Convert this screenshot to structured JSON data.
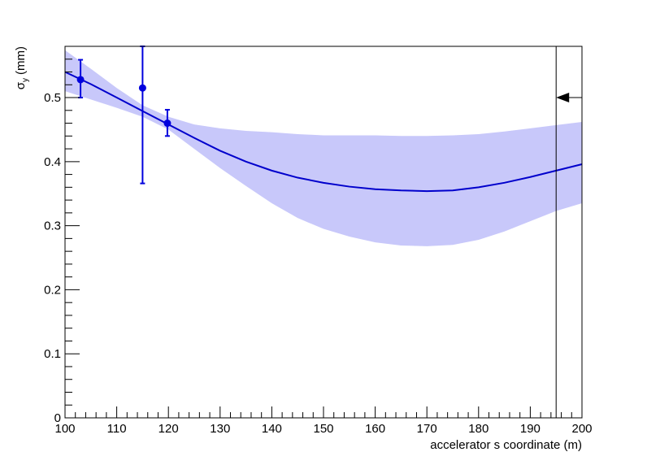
{
  "chart_data": {
    "type": "scatter",
    "title": "",
    "xlabel": "accelerator s coordinate (m)",
    "ylabel_symbol": "σ",
    "ylabel_subscript": "y",
    "ylabel_unit": "(mm)",
    "xlim": [
      100,
      200
    ],
    "ylim": [
      0,
      0.58
    ],
    "x_ticks": [
      100,
      110,
      120,
      130,
      140,
      150,
      160,
      170,
      180,
      190,
      200
    ],
    "x_tick_labels": [
      "100",
      "110",
      "120",
      "130",
      "140",
      "150",
      "160",
      "170",
      "180",
      "190",
      "200"
    ],
    "y_ticks": [
      0,
      0.1,
      0.2,
      0.3,
      0.4,
      0.5
    ],
    "y_tick_labels": [
      "0",
      "0.1",
      "0.2",
      "0.3",
      "0.4",
      "0.5"
    ],
    "grid": false,
    "series": [
      {
        "kind": "points",
        "color": "#0000dd",
        "points": [
          {
            "x": 103,
            "y": 0.528,
            "y_low": 0.5,
            "y_high": 0.559
          },
          {
            "x": 115,
            "y": 0.515,
            "y_low": 0.366,
            "y_high": 0.58
          },
          {
            "x": 119.8,
            "y": 0.46,
            "y_low": 0.44,
            "y_high": 0.481
          }
        ]
      },
      {
        "kind": "fit-curve",
        "color": "#0000cc",
        "x": [
          100,
          105,
          110,
          115,
          120,
          125,
          130,
          135,
          140,
          145,
          150,
          155,
          160,
          165,
          170,
          175,
          180,
          185,
          190,
          195,
          200
        ],
        "y": [
          0.54,
          0.521,
          0.5,
          0.479,
          0.458,
          0.437,
          0.417,
          0.4,
          0.386,
          0.375,
          0.367,
          0.361,
          0.357,
          0.355,
          0.354,
          0.355,
          0.36,
          0.367,
          0.376,
          0.386,
          0.396
        ]
      },
      {
        "kind": "confidence-band",
        "color": "#c8c8fa",
        "x": [
          100,
          105,
          110,
          115,
          120,
          125,
          130,
          135,
          140,
          145,
          150,
          155,
          160,
          165,
          170,
          175,
          180,
          185,
          190,
          195,
          200
        ],
        "y_low": [
          0.51,
          0.497,
          0.484,
          0.47,
          0.45,
          0.42,
          0.39,
          0.362,
          0.335,
          0.312,
          0.295,
          0.283,
          0.274,
          0.269,
          0.268,
          0.27,
          0.278,
          0.291,
          0.307,
          0.323,
          0.335
        ],
        "y_high": [
          0.574,
          0.545,
          0.515,
          0.488,
          0.47,
          0.458,
          0.452,
          0.448,
          0.446,
          0.443,
          0.441,
          0.441,
          0.441,
          0.44,
          0.44,
          0.441,
          0.443,
          0.447,
          0.452,
          0.457,
          0.462
        ]
      }
    ],
    "markers": [
      {
        "kind": "vertical-line",
        "x": 195
      },
      {
        "kind": "arrow",
        "x_from": 200,
        "x_to": 195,
        "y": 0.5,
        "direction": "left"
      }
    ]
  }
}
